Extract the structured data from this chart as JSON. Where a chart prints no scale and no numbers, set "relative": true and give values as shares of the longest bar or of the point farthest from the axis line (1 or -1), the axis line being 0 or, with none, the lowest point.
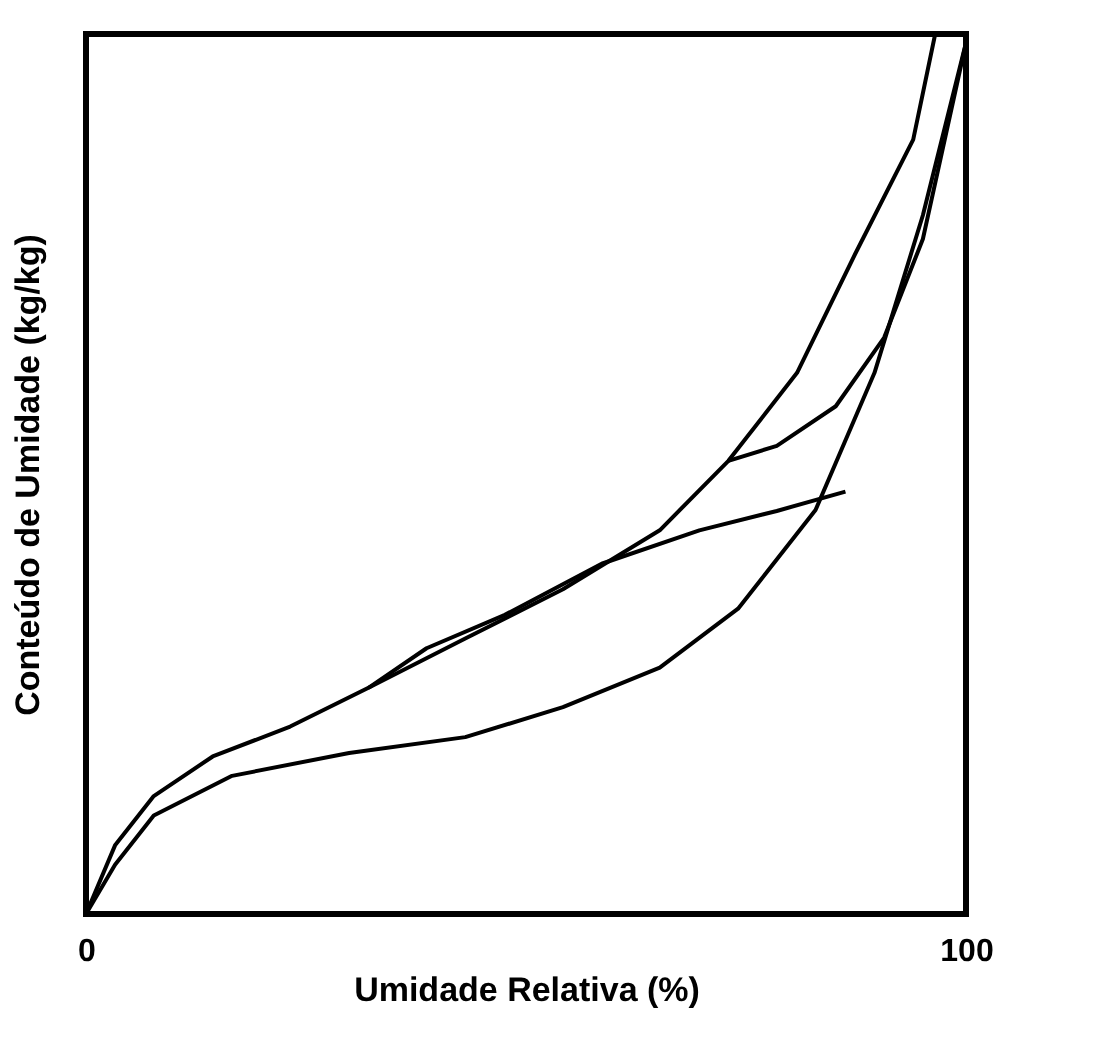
{
  "chart_data": {
    "type": "line",
    "xlabel": "Umidade Relativa (%)",
    "ylabel": "Conteúdo de Umidade (kg/kg)",
    "relative": true,
    "xlim": [
      0,
      100
    ],
    "xticks": [
      0,
      100
    ],
    "tick_labels": "x",
    "grid": false,
    "legend": false,
    "line_style": "solid",
    "marker": "none",
    "series": [
      {
        "color": "#000000",
        "x": [
          96.5,
          94.0,
          87.4,
          80.8,
          73.0,
          65.2,
          54.2,
          43.1,
          32.1,
          23.2,
          14.4,
          7.7,
          3.3,
          0
        ],
        "values": [
          1.0,
          0.88,
          0.75,
          0.615,
          0.515,
          0.436,
          0.369,
          0.313,
          0.257,
          0.213,
          0.179,
          0.134,
          0.078,
          0
        ]
      },
      {
        "color": "#000000",
        "x": [
          0,
          3.3,
          7.7,
          16.6,
          29.9,
          43.1,
          54.2,
          65.2,
          74.1,
          82.9,
          89.6,
          95.1,
          100
        ],
        "values": [
          0,
          0.056,
          0.112,
          0.157,
          0.183,
          0.201,
          0.235,
          0.28,
          0.347,
          0.459,
          0.615,
          0.794,
          0.99
        ]
      },
      {
        "color": "#000000",
        "x": [
          86.3,
          78.5,
          69.7,
          58.6,
          47.6,
          38.7,
          32.1
        ],
        "values": [
          0.48,
          0.458,
          0.436,
          0.398,
          0.34,
          0.302,
          0.257
        ]
      },
      {
        "color": "#000000",
        "x": [
          73.0,
          78.5,
          85.2,
          90.7,
          95.1,
          100
        ],
        "values": [
          0.515,
          0.532,
          0.577,
          0.655,
          0.767,
          0.99
        ]
      }
    ]
  }
}
